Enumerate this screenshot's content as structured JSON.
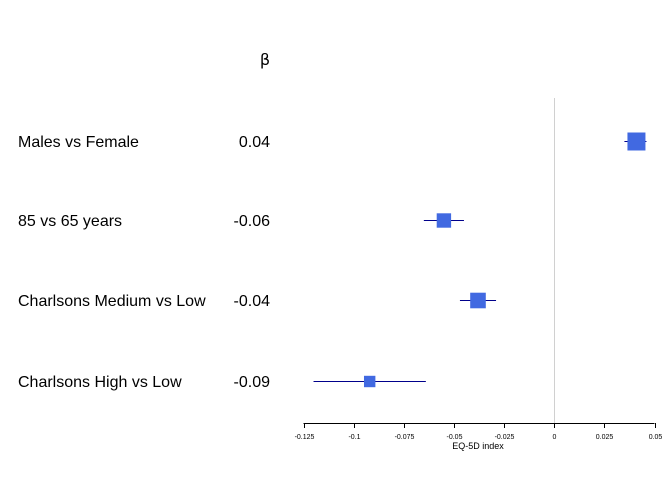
{
  "chart_data": {
    "type": "forest",
    "column_header": "β",
    "xlabel": "EQ-5D index",
    "xlim": [
      -0.125,
      0.05
    ],
    "xticks": [
      "-0.125",
      "-0.1",
      "-0.075",
      "-0.05",
      "-0.025",
      "0",
      "0.025",
      "0.05"
    ],
    "reference_line": 0,
    "colors": {
      "marker": "#4169E1",
      "ci_line": "#00008B",
      "reference": "#d0d0d0",
      "axis": "#000000"
    },
    "rows": [
      {
        "label": "Males vs Female",
        "beta": "0.04",
        "estimate": 0.041,
        "ci_low": 0.035,
        "ci_high": 0.046,
        "weight": 1.0
      },
      {
        "label": "85 vs 65 years",
        "beta": "-0.06",
        "estimate": -0.055,
        "ci_low": -0.065,
        "ci_high": -0.045,
        "weight": 0.7
      },
      {
        "label": "Charlsons Medium vs Low",
        "beta": "-0.04",
        "estimate": -0.038,
        "ci_low": -0.047,
        "ci_high": -0.029,
        "weight": 0.8
      },
      {
        "label": "Charlsons High vs Low",
        "beta": "-0.09",
        "estimate": -0.092,
        "ci_low": -0.12,
        "ci_high": -0.064,
        "weight": 0.45
      }
    ]
  }
}
